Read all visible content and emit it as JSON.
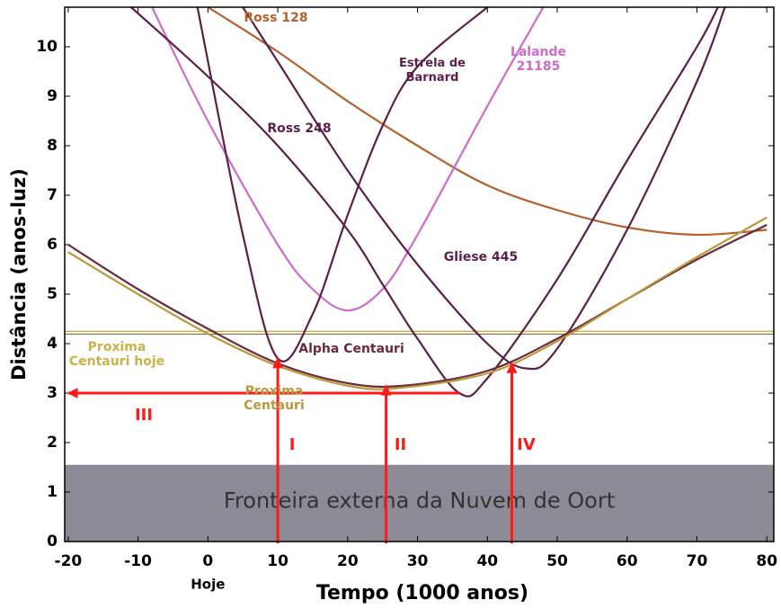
{
  "chart_data": {
    "type": "line",
    "xlabel": "Tempo (1000 anos)",
    "ylabel": "Distância (anos-luz)",
    "xlim": [
      -20.5,
      81
    ],
    "ylim": [
      0,
      10.8
    ],
    "xticks": [
      -20,
      -10,
      0,
      10,
      20,
      30,
      40,
      50,
      60,
      70,
      80
    ],
    "yticks": [
      0,
      1,
      2,
      3,
      4,
      5,
      6,
      7,
      8,
      9,
      10
    ],
    "today_label": "Hoje",
    "region": {
      "label": "Fronteira externa da Nuvem de Oort",
      "y": [
        0,
        1.55
      ],
      "color": "#8c8a94"
    },
    "reference_line": {
      "label": "Proxima Centauri hoje",
      "y": 4.22,
      "color": "#c9b24a"
    },
    "series": [
      {
        "name": "Ross 128",
        "color": "#b5602f",
        "x": [
          0,
          10,
          20,
          30,
          40,
          50,
          60,
          70,
          80
        ],
        "values": [
          10.8,
          9.9,
          8.9,
          8.0,
          7.2,
          6.7,
          6.35,
          6.2,
          6.3
        ]
      },
      {
        "name": "Lalande 21185",
        "color": "#cc6ccc",
        "x": [
          -8,
          0,
          10,
          15,
          20,
          25,
          30,
          40,
          48
        ],
        "values": [
          10.8,
          8.5,
          6.0,
          5.1,
          4.67,
          5.1,
          6.2,
          8.8,
          10.8
        ]
      },
      {
        "name": "Ross 248",
        "color": "#5c1f4a",
        "x": [
          -11,
          0,
          10,
          20,
          25,
          30,
          36,
          40,
          50,
          60,
          70,
          73
        ],
        "values": [
          10.8,
          9.4,
          8.0,
          6.3,
          5.2,
          4.1,
          3.0,
          3.3,
          5.3,
          7.7,
          10.0,
          10.8
        ]
      },
      {
        "name": "Estrela de Barnard",
        "color": "#5c1f4a",
        "x": [
          -1.5,
          5,
          10,
          15,
          20,
          25,
          30,
          40
        ],
        "values": [
          10.8,
          6.2,
          3.7,
          4.6,
          6.6,
          8.4,
          9.6,
          10.8
        ]
      },
      {
        "name": "Gliese 445",
        "color": "#5c1f4a",
        "x": [
          5,
          10,
          20,
          30,
          40,
          45.5,
          50,
          60,
          70,
          74
        ],
        "values": [
          10.8,
          9.7,
          7.5,
          5.6,
          4.0,
          3.5,
          3.9,
          6.3,
          9.3,
          10.8
        ]
      },
      {
        "name": "Alpha Centauri",
        "color": "#6e2a3a",
        "x": [
          -20,
          -10,
          0,
          10,
          20,
          28,
          40,
          50,
          60,
          70,
          80
        ],
        "values": [
          6.0,
          5.1,
          4.3,
          3.6,
          3.2,
          3.15,
          3.45,
          4.1,
          4.9,
          5.7,
          6.4
        ]
      },
      {
        "name": "Proxima Centauri",
        "color": "#b89a3c",
        "x": [
          -20,
          -10,
          0,
          10,
          20,
          27,
          40,
          50,
          60,
          70,
          80
        ],
        "values": [
          5.85,
          5.0,
          4.2,
          3.55,
          3.15,
          3.1,
          3.4,
          4.05,
          4.9,
          5.75,
          6.55
        ]
      }
    ],
    "arrows": [
      {
        "label": "I",
        "x": 10,
        "y": 3.7
      },
      {
        "label": "II",
        "x": 25.5,
        "y": 3.15
      },
      {
        "label": "IV",
        "x": 43.5,
        "y": 3.6
      }
    ],
    "h_arrow": {
      "label": "III",
      "y": 3.0,
      "x": [
        36,
        -20
      ]
    },
    "arrow_color": "#ff1a1a"
  }
}
